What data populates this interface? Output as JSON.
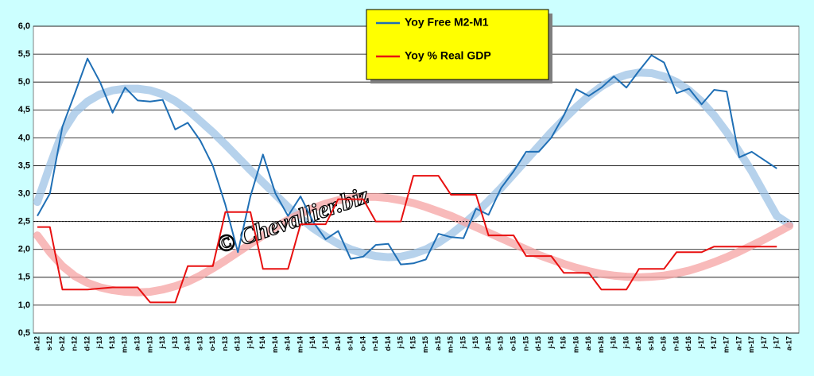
{
  "chart_data": {
    "type": "line",
    "watermark": "© Chevallier.biz",
    "legend": "top-center",
    "grid": true,
    "reference_line": 2.5,
    "ylim": [
      0.5,
      6.0
    ],
    "yticks": [
      {
        "value": 0.5,
        "label": "0,5"
      },
      {
        "value": 1.0,
        "label": "1,0"
      },
      {
        "value": 1.5,
        "label": "1,5"
      },
      {
        "value": 2.0,
        "label": "2,0"
      },
      {
        "value": 2.5,
        "label": "2,5"
      },
      {
        "value": 3.0,
        "label": "3,0"
      },
      {
        "value": 3.5,
        "label": "3,5"
      },
      {
        "value": 4.0,
        "label": "4,0"
      },
      {
        "value": 4.5,
        "label": "4,5"
      },
      {
        "value": 5.0,
        "label": "5,0"
      },
      {
        "value": 5.5,
        "label": "5,5"
      },
      {
        "value": 6.0,
        "label": "6,0"
      }
    ],
    "categories": [
      "a-12",
      "s-12",
      "o-12",
      "n-12",
      "d-12",
      "j-13",
      "f-13",
      "m-13",
      "a-13",
      "m-13",
      "j-13",
      "j-13",
      "a-13",
      "s-13",
      "o-13",
      "n-13",
      "d-13",
      "j-14",
      "f-14",
      "m-14",
      "a-14",
      "m-14",
      "j-14",
      "j-14",
      "a-14",
      "s-14",
      "o-14",
      "n-14",
      "d-14",
      "j-15",
      "f-15",
      "m-15",
      "a-15",
      "m-15",
      "j-15",
      "j-15",
      "a-15",
      "s-15",
      "o-15",
      "n-15",
      "d-15",
      "j-16",
      "f-16",
      "m-16",
      "a-16",
      "m-16",
      "j-16",
      "j-16",
      "a-16",
      "s-16",
      "o-16",
      "n-16",
      "d-16",
      "j-17",
      "f-17",
      "m-17",
      "a-17",
      "m-17",
      "j-17",
      "j-17",
      "a-17"
    ],
    "series": [
      {
        "color": "#9ec3e6",
        "trend": true,
        "values": [
          2.85,
          3.5,
          4.1,
          4.45,
          4.65,
          4.78,
          4.85,
          4.88,
          4.88,
          4.85,
          4.78,
          4.66,
          4.5,
          4.3,
          4.1,
          3.88,
          3.65,
          3.42,
          3.2,
          2.98,
          2.76,
          2.56,
          2.38,
          2.23,
          2.1,
          2.0,
          1.93,
          1.88,
          1.86,
          1.87,
          1.92,
          2.0,
          2.12,
          2.27,
          2.45,
          2.65,
          2.87,
          3.1,
          3.35,
          3.6,
          3.85,
          4.1,
          4.33,
          4.55,
          4.75,
          4.92,
          5.05,
          5.13,
          5.17,
          5.16,
          5.1,
          5.0,
          4.85,
          4.65,
          4.4,
          4.1,
          3.75,
          3.4,
          3.0,
          2.6,
          2.45
        ]
      },
      {
        "color": "#f5a3a3",
        "trend": true,
        "values": [
          2.25,
          1.95,
          1.7,
          1.52,
          1.4,
          1.32,
          1.27,
          1.24,
          1.23,
          1.24,
          1.28,
          1.34,
          1.42,
          1.53,
          1.66,
          1.8,
          1.95,
          2.1,
          2.25,
          2.4,
          2.53,
          2.64,
          2.74,
          2.82,
          2.88,
          2.92,
          2.94,
          2.94,
          2.92,
          2.88,
          2.83,
          2.76,
          2.68,
          2.6,
          2.5,
          2.4,
          2.3,
          2.2,
          2.1,
          2.0,
          1.9,
          1.82,
          1.74,
          1.67,
          1.61,
          1.56,
          1.53,
          1.51,
          1.5,
          1.51,
          1.53,
          1.57,
          1.62,
          1.69,
          1.77,
          1.86,
          1.96,
          2.07,
          2.18,
          2.3,
          2.42
        ]
      },
      {
        "name": "Yoy Free M2-M1",
        "color": "#1f6fb5",
        "values": [
          2.6,
          3.0,
          4.2,
          4.8,
          5.42,
          5.0,
          4.45,
          4.9,
          4.67,
          4.65,
          4.68,
          4.15,
          4.27,
          3.95,
          3.5,
          2.8,
          1.95,
          2.95,
          3.7,
          3.0,
          2.6,
          2.95,
          2.5,
          2.18,
          2.33,
          1.83,
          1.87,
          2.08,
          2.1,
          1.73,
          1.75,
          1.82,
          2.28,
          2.22,
          2.2,
          2.73,
          2.62,
          3.1,
          3.4,
          3.75,
          3.75,
          4.0,
          4.4,
          4.87,
          4.75,
          4.9,
          5.1,
          4.9,
          5.2,
          5.48,
          5.35,
          4.8,
          4.88,
          4.6,
          4.86,
          4.83,
          3.65,
          3.75,
          3.6,
          3.45,
          null
        ]
      },
      {
        "name": "Yoy % Real GDP",
        "color": "#e81010",
        "values": [
          2.4,
          2.4,
          1.28,
          1.28,
          1.28,
          1.3,
          1.32,
          1.32,
          1.32,
          1.05,
          1.05,
          1.05,
          1.7,
          1.7,
          1.7,
          2.67,
          2.67,
          2.67,
          1.65,
          1.65,
          1.65,
          2.45,
          2.45,
          2.45,
          2.9,
          2.9,
          2.9,
          2.5,
          2.5,
          2.5,
          3.32,
          3.32,
          3.32,
          2.98,
          2.98,
          2.98,
          2.25,
          2.25,
          2.25,
          1.88,
          1.88,
          1.88,
          1.58,
          1.58,
          1.58,
          1.28,
          1.28,
          1.28,
          1.65,
          1.65,
          1.65,
          1.95,
          1.95,
          1.95,
          2.05,
          2.05,
          2.05,
          2.05,
          2.05,
          2.05,
          null
        ]
      }
    ]
  }
}
